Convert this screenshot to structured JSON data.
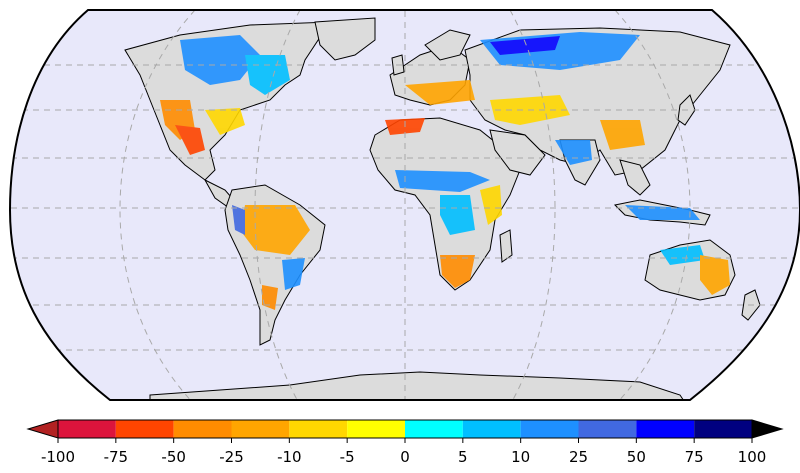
{
  "figure": {
    "projection": "robinson",
    "background_colors": {
      "ocean": "#e8e8fa",
      "land_nodata": "#dcdcdc",
      "outline": "#000000",
      "graticule": "#a9a9a9"
    }
  },
  "colorbar": {
    "extend": "both",
    "boundaries": [
      -100,
      -75,
      -50,
      -25,
      -10,
      -5,
      0,
      5,
      10,
      25,
      50,
      75,
      100
    ],
    "tick_labels": [
      "-100",
      "-75",
      "-50",
      "-25",
      "-10",
      "-5",
      "0",
      "5",
      "10",
      "25",
      "50",
      "75",
      "100"
    ],
    "under_color": "#b22222",
    "over_color": "#000000",
    "colors": [
      "#dc143c",
      "#ff4500",
      "#ff8c00",
      "#ffa500",
      "#ffd700",
      "#ffff00",
      "#00ffff",
      "#00bfff",
      "#1e90ff",
      "#4169e1",
      "#0000ff",
      "#000080"
    ]
  }
}
